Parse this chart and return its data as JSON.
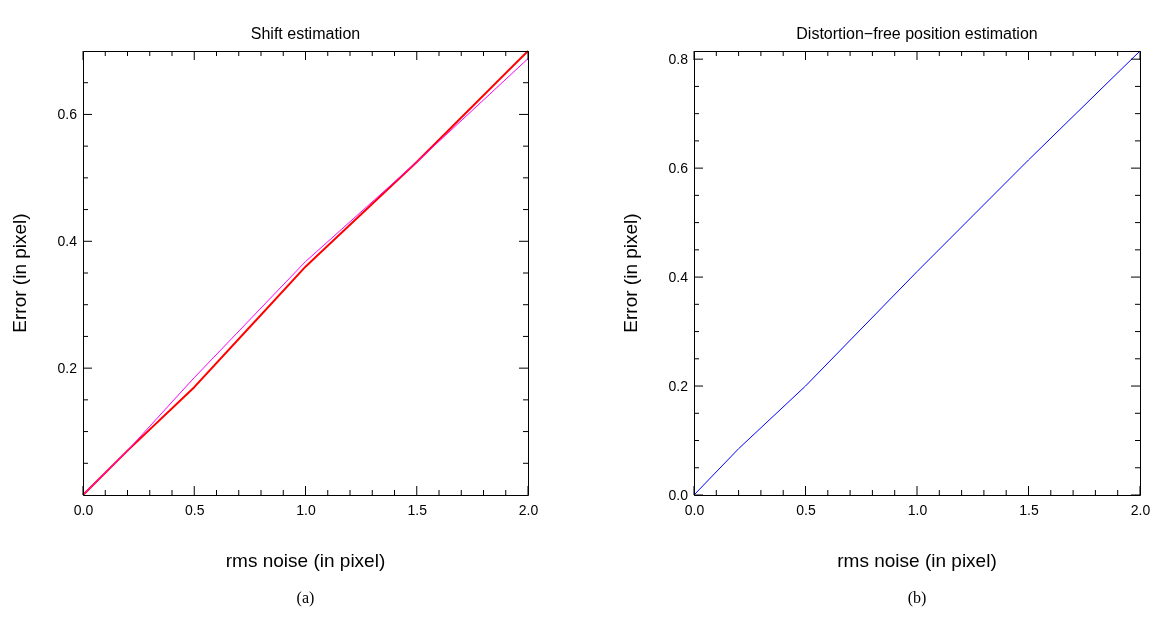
{
  "chart_data": [
    {
      "type": "line",
      "title": "Shift estimation",
      "xlabel": "rms noise (in pixel)",
      "ylabel": "Error (in pixel)",
      "annotations": [
        "(a)"
      ],
      "x": [
        0,
        0.2,
        0.5,
        1.0,
        1.5,
        2.0
      ],
      "series": [
        {
          "color": "#ff0000",
          "values": [
            0,
            0.07,
            0.17,
            0.36,
            0.525,
            0.7
          ]
        },
        {
          "color": "#ff00ff",
          "values": [
            0,
            0.07,
            0.185,
            0.368,
            0.525,
            0.688
          ]
        }
      ],
      "xlim": [
        0,
        2
      ],
      "ylim": [
        0,
        0.7
      ],
      "xticks": [
        {
          "value": 0,
          "label": "0.0"
        },
        {
          "value": 0.1,
          "label": null
        },
        {
          "value": 0.2,
          "label": null
        },
        {
          "value": 0.3,
          "label": null
        },
        {
          "value": 0.4,
          "label": null
        },
        {
          "value": 0.5,
          "label": "0.5"
        },
        {
          "value": 0.6,
          "label": null
        },
        {
          "value": 0.7,
          "label": null
        },
        {
          "value": 0.8,
          "label": null
        },
        {
          "value": 0.9,
          "label": null
        },
        {
          "value": 1.0,
          "label": "1.0"
        },
        {
          "value": 1.1,
          "label": null
        },
        {
          "value": 1.2,
          "label": null
        },
        {
          "value": 1.3,
          "label": null
        },
        {
          "value": 1.4,
          "label": null
        },
        {
          "value": 1.5,
          "label": "1.5"
        },
        {
          "value": 1.6,
          "label": null
        },
        {
          "value": 1.7,
          "label": null
        },
        {
          "value": 1.8,
          "label": null
        },
        {
          "value": 1.9,
          "label": null
        },
        {
          "value": 2.0,
          "label": "2.0"
        }
      ],
      "yticks": [
        {
          "value": 0.05,
          "label": null
        },
        {
          "value": 0.1,
          "label": null
        },
        {
          "value": 0.15,
          "label": null
        },
        0.2,
        {
          "value": 0.25,
          "label": null
        },
        {
          "value": 0.3,
          "label": null
        },
        {
          "value": 0.35,
          "label": null
        },
        0.4,
        {
          "value": 0.45,
          "label": null
        },
        {
          "value": 0.5,
          "label": null
        },
        {
          "value": 0.55,
          "label": null
        },
        0.6,
        {
          "value": 0.65,
          "label": null
        }
      ],
      "line_style": "solid"
    },
    {
      "type": "line",
      "title": "Distortion−free position estimation",
      "xlabel": "rms noise (in pixel)",
      "ylabel": "Error (in pixel)",
      "annotations": [
        "(b)"
      ],
      "x": [
        0,
        0.2,
        0.5,
        1.0,
        1.5,
        2.0
      ],
      "series": [
        {
          "color": "#0000ff",
          "values": [
            0,
            0.085,
            0.2,
            0.41,
            0.615,
            0.815
          ]
        }
      ],
      "xlim": [
        0,
        2
      ],
      "ylim": [
        0,
        0.815
      ],
      "xticks": [
        {
          "value": 0,
          "label": "0.0"
        },
        {
          "value": 0.1,
          "label": null
        },
        {
          "value": 0.2,
          "label": null
        },
        {
          "value": 0.3,
          "label": null
        },
        {
          "value": 0.4,
          "label": null
        },
        {
          "value": 0.5,
          "label": "0.5"
        },
        {
          "value": 0.6,
          "label": null
        },
        {
          "value": 0.7,
          "label": null
        },
        {
          "value": 0.8,
          "label": null
        },
        {
          "value": 0.9,
          "label": null
        },
        {
          "value": 1.0,
          "label": "1.0"
        },
        {
          "value": 1.1,
          "label": null
        },
        {
          "value": 1.2,
          "label": null
        },
        {
          "value": 1.3,
          "label": null
        },
        {
          "value": 1.4,
          "label": null
        },
        {
          "value": 1.5,
          "label": "1.5"
        },
        {
          "value": 1.6,
          "label": null
        },
        {
          "value": 1.7,
          "label": null
        },
        {
          "value": 1.8,
          "label": null
        },
        {
          "value": 1.9,
          "label": null
        },
        {
          "value": 2.0,
          "label": "2.0"
        }
      ],
      "yticks": [
        {
          "value": 0,
          "label": "0.0"
        },
        {
          "value": 0.05,
          "label": null
        },
        {
          "value": 0.1,
          "label": null
        },
        {
          "value": 0.15,
          "label": null
        },
        {
          "value": 0.2,
          "label": "0.2"
        },
        {
          "value": 0.25,
          "label": null
        },
        {
          "value": 0.3,
          "label": null
        },
        {
          "value": 0.35,
          "label": null
        },
        {
          "value": 0.4,
          "label": "0.4"
        },
        {
          "value": 0.45,
          "label": null
        },
        {
          "value": 0.5,
          "label": null
        },
        {
          "value": 0.55,
          "label": null
        },
        {
          "value": 0.6,
          "label": "0.6"
        },
        {
          "value": 0.65,
          "label": null
        },
        {
          "value": 0.7,
          "label": null
        },
        {
          "value": 0.75,
          "label": null
        },
        {
          "value": 0.8,
          "label": "0.8"
        }
      ],
      "line_style": "solid"
    }
  ]
}
